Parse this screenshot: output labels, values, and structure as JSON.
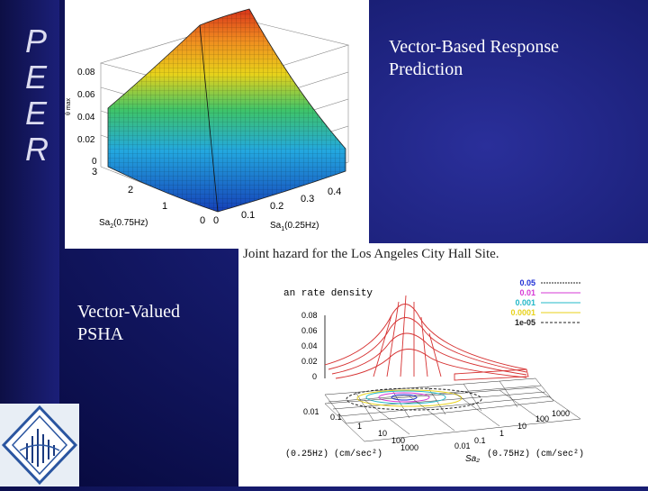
{
  "sidebar": {
    "letters": [
      "P",
      "E",
      "E",
      "R"
    ]
  },
  "slide": {
    "title_line1": "Vector-Based  Response",
    "title_line2": "Prediction",
    "subtitle_line1": "Vector-Valued",
    "subtitle_line2": "PSHA"
  },
  "plot1": {
    "z_ticks": [
      "0.08",
      "0.06",
      "0.04",
      "0.02",
      "0"
    ],
    "z_axis_label": "θ max",
    "y_ticks": [
      "3",
      "2",
      "1",
      "0"
    ],
    "x_ticks": [
      "0",
      "0.1",
      "0.2",
      "0.3",
      "0.4"
    ],
    "y_axis_label_prefix": "Sa",
    "y_axis_label_sub": "2",
    "y_axis_label_suffix": "(0.75Hz)",
    "x_axis_label_prefix": "Sa",
    "x_axis_label_sub": "1",
    "x_axis_label_suffix": "(0.25Hz)"
  },
  "plot2": {
    "title": "Joint hazard for the Los Angeles City Hall Site.",
    "density_label": "an rate density",
    "z_ticks": [
      "0.08",
      "0.06",
      "0.04",
      "0.02",
      "0"
    ],
    "lower_tick": "0.01",
    "left_ticks": [
      "0.1",
      "1",
      "10",
      "100",
      "1000"
    ],
    "right_ticks": [
      "0.01",
      "0.1",
      "1",
      "10",
      "100",
      "1000"
    ],
    "x_label_left": "(0.25Hz) (cm/sec²)",
    "x_label_sa": "Sa₂",
    "x_label_right": "(0.75Hz) (cm/sec²)",
    "legend": [
      {
        "label": "0.05",
        "color": "#1f2fd6"
      },
      {
        "label": "0.01",
        "color": "#d63ad6"
      },
      {
        "label": "0.001",
        "color": "#23b8c8"
      },
      {
        "label": "0.0001",
        "color": "#e8d21a"
      },
      {
        "label": "1e-05",
        "color": "#222222"
      }
    ]
  },
  "colors": {
    "surface_high": "#d8341a",
    "surface_mid": "#3ec46a",
    "surface_low": "#1540b8",
    "wire_red": "#d63030"
  }
}
